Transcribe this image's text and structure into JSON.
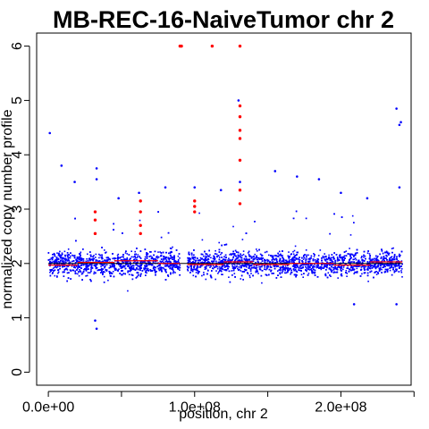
{
  "chart_data": {
    "type": "scatter",
    "title": "MB-REC-16-NaiveTumor chr 2",
    "xlabel": "position, chr 2",
    "ylabel": "normalized copy number profile",
    "xlim": [
      -8000000,
      248000000
    ],
    "ylim": [
      -0.24,
      6.24
    ],
    "xticks": [
      0,
      50000000,
      100000000,
      150000000,
      200000000,
      250000000
    ],
    "xtick_labels": [
      "0.0e+00",
      "",
      "1.0e+08",
      "",
      "2.0e+08",
      ""
    ],
    "yticks": [
      0,
      1,
      2,
      3,
      4,
      5,
      6
    ],
    "ytick_labels": [
      "0",
      "1",
      "2",
      "3",
      "4",
      "5",
      "6"
    ],
    "grid": false,
    "colors": {
      "points": "#0000ff",
      "outliers": "#ff0000",
      "segments": "#ff0000",
      "median": "#000000"
    },
    "median_line": {
      "y": 2.0,
      "x": [
        0,
        242000000
      ]
    },
    "series": [
      {
        "role": "bins",
        "description_only": false,
        "dense_band": {
          "center": 2.0,
          "spread": 0.35,
          "x_range": [
            0,
            242000000
          ],
          "gap": [
            90000000,
            95000000
          ]
        },
        "scattered_points": [
          [
            1000000,
            4.4
          ],
          [
            9000000,
            3.8
          ],
          [
            18000000,
            3.5
          ],
          [
            33000000,
            3.75
          ],
          [
            33000000,
            3.55
          ],
          [
            32000000,
            0.95
          ],
          [
            33000000,
            0.8
          ],
          [
            48000000,
            3.2
          ],
          [
            62000000,
            3.3
          ],
          [
            80000000,
            3.4
          ],
          [
            100000000,
            3.4
          ],
          [
            118000000,
            3.35
          ],
          [
            130000000,
            5.0
          ],
          [
            131000000,
            3.5
          ],
          [
            155000000,
            3.7
          ],
          [
            170000000,
            3.6
          ],
          [
            185000000,
            3.55
          ],
          [
            200000000,
            3.3
          ],
          [
            209000000,
            1.25
          ],
          [
            218000000,
            3.2
          ],
          [
            238000000,
            4.85
          ],
          [
            240000000,
            4.55
          ],
          [
            241000000,
            4.6
          ],
          [
            238000000,
            1.25
          ],
          [
            240000000,
            3.4
          ]
        ]
      },
      {
        "role": "outliers",
        "values": [
          [
            90000000,
            6.0
          ],
          [
            91000000,
            6.0
          ],
          [
            112000000,
            6.0
          ],
          [
            131000000,
            6.0
          ],
          [
            131000000,
            4.9
          ],
          [
            131000000,
            4.7
          ],
          [
            131000000,
            4.45
          ],
          [
            131000000,
            4.3
          ],
          [
            131000000,
            3.9
          ],
          [
            131000000,
            3.35
          ],
          [
            131000000,
            3.1
          ],
          [
            32000000,
            2.95
          ],
          [
            32000000,
            2.8
          ],
          [
            32000000,
            2.55
          ],
          [
            63000000,
            3.15
          ],
          [
            63000000,
            2.95
          ],
          [
            63000000,
            2.7
          ],
          [
            63000000,
            2.55
          ],
          [
            100000000,
            3.15
          ],
          [
            100000000,
            3.05
          ],
          [
            100000000,
            2.95
          ]
        ]
      },
      {
        "role": "segments",
        "values": [
          [
            0,
            20000000,
            1.97
          ],
          [
            20000000,
            45000000,
            2.02
          ],
          [
            45000000,
            75000000,
            2.05
          ],
          [
            75000000,
            90000000,
            2.0
          ],
          [
            95000000,
            120000000,
            1.98
          ],
          [
            120000000,
            140000000,
            2.03
          ],
          [
            140000000,
            165000000,
            1.98
          ],
          [
            165000000,
            195000000,
            2.0
          ],
          [
            195000000,
            220000000,
            1.97
          ],
          [
            220000000,
            242000000,
            2.03
          ]
        ]
      }
    ]
  }
}
